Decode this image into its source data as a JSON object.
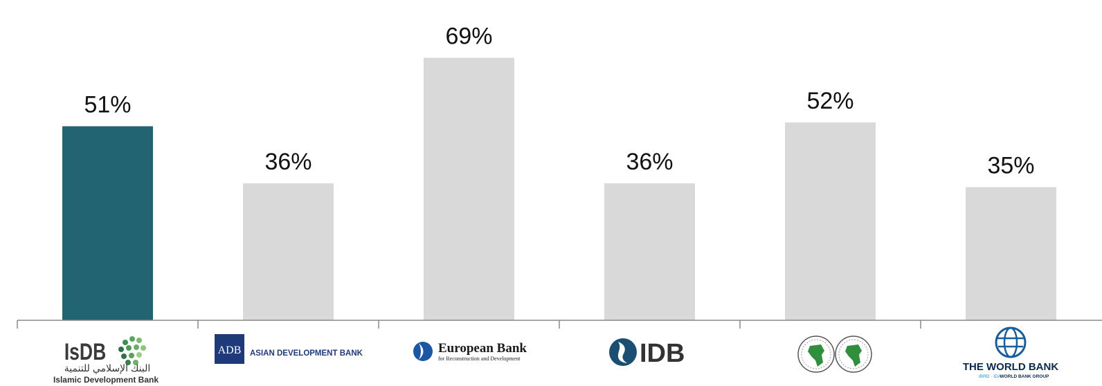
{
  "chart_data": {
    "type": "bar",
    "categories": [
      "IsDB",
      "ADB",
      "European Bank",
      "IDB",
      "AfDB",
      "THE WORLD BANK"
    ],
    "values": [
      51,
      36,
      69,
      36,
      52,
      35
    ],
    "data_labels": [
      "51%",
      "36%",
      "69%",
      "36%",
      "52%",
      "35%"
    ],
    "title": "",
    "xlabel": "",
    "ylabel": "",
    "ylim": [
      0,
      75
    ],
    "grid": false,
    "legend": "none"
  },
  "colors": {
    "highlight": "#236472",
    "default": "#d9d9d9",
    "axis": "#888888"
  },
  "logos": {
    "isdb": {
      "name": "IsDB",
      "arabic": "البنك الإسلامي للتنمية",
      "sub": "Islamic Development Bank"
    },
    "adb": {
      "box": "ADB",
      "name": "ASIAN DEVELOPMENT BANK"
    },
    "ebrd": {
      "name": "European Bank",
      "sub": "for Reconstruction and Development"
    },
    "idb": {
      "name": "IDB"
    },
    "afdb": {
      "icon": "africa-seal-icon"
    },
    "wb": {
      "name": "THE WORLD BANK",
      "sub1": "IBRD · IDA",
      "sub2": "WORLD BANK GROUP"
    }
  }
}
